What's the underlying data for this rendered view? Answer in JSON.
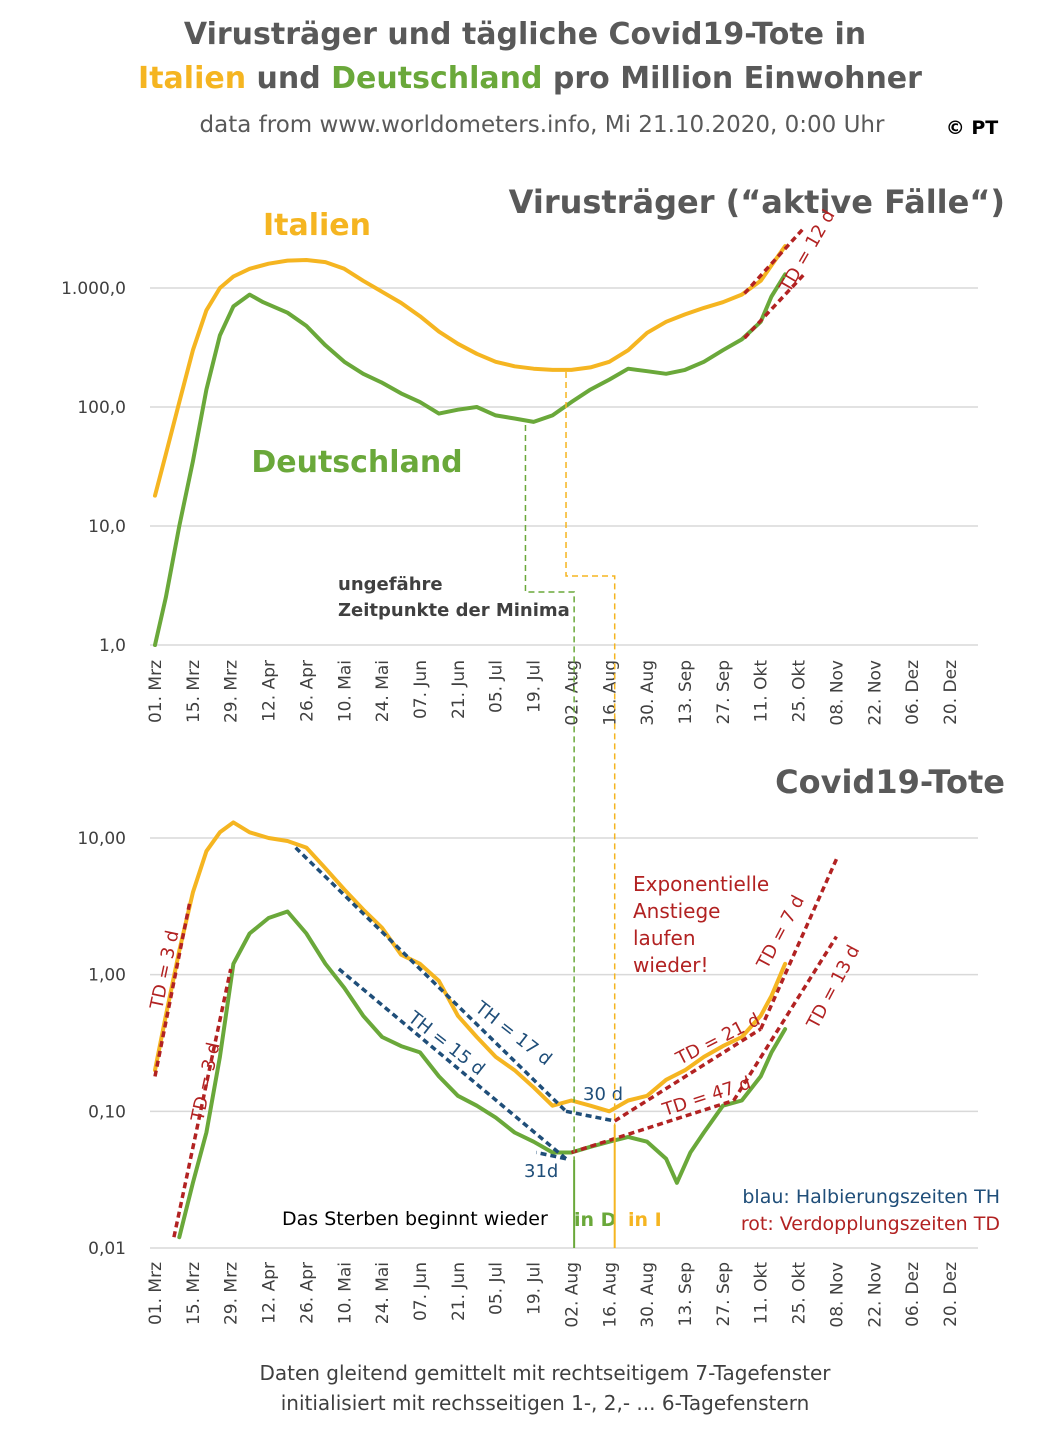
{
  "header": {
    "title_line1": "Virusträger und tägliche Covid19-Tote in",
    "title_line2_italy": "Italien",
    "title_line2_and": " und ",
    "title_line2_germany": "Deutschland",
    "title_line2_rest": " pro Million Einwohner",
    "subtitle": "data from www.worldometers.info, Mi 21.10.2020, 0:00 Uhr",
    "copyright": "© PT"
  },
  "colors": {
    "italy": "#f5b521",
    "germany": "#6aa83a",
    "halving_blue": "#1f4e79",
    "doubling_red": "#b22222",
    "title_gray": "#595959"
  },
  "footer": {
    "line1": "Daten gleitend gemittelt mit rechtseitigem 7-Tagefenster",
    "line2": "initialisiert mit rechsseitigen 1-, 2,- ... 6-Tagefenstern"
  },
  "chart_data": [
    {
      "type": "line",
      "title": "Virusträger (“aktive Fälle“)",
      "y_scale": "log",
      "ylim": [
        1,
        3000
      ],
      "y_ticks": [
        "1.000,0",
        "100,0",
        "10,0",
        "1,0"
      ],
      "y_tick_values": [
        1000,
        100,
        10,
        1
      ],
      "x_range": [
        "2020-03-01",
        "2020-12-31"
      ],
      "x_ticks": [
        "01. Mrz",
        "15. Mrz",
        "29. Mrz",
        "12. Apr",
        "26. Apr",
        "10. Mai",
        "24. Mai",
        "07. Jun",
        "21. Jun",
        "05. Jul",
        "19. Jul",
        "02. Aug",
        "16. Aug",
        "30. Aug",
        "13. Sep",
        "27. Sep",
        "11. Okt",
        "25. Okt",
        "08. Nov",
        "22. Nov",
        "06. Dez",
        "20. Dez"
      ],
      "x_tick_dates": [
        "2020-03-01",
        "2020-03-15",
        "2020-03-29",
        "2020-04-12",
        "2020-04-26",
        "2020-05-10",
        "2020-05-24",
        "2020-06-07",
        "2020-06-21",
        "2020-07-05",
        "2020-07-19",
        "2020-08-02",
        "2020-08-16",
        "2020-08-30",
        "2020-09-13",
        "2020-09-27",
        "2020-10-11",
        "2020-10-25",
        "2020-11-08",
        "2020-11-22",
        "2020-12-06",
        "2020-12-20"
      ],
      "grid": true,
      "series": [
        {
          "name": "Italien",
          "color": "#f5b521",
          "points": [
            [
              "2020-03-01",
              18
            ],
            [
              "2020-03-05",
              40
            ],
            [
              "2020-03-10",
              110
            ],
            [
              "2020-03-15",
              300
            ],
            [
              "2020-03-20",
              650
            ],
            [
              "2020-03-25",
              1000
            ],
            [
              "2020-03-30",
              1250
            ],
            [
              "2020-04-05",
              1450
            ],
            [
              "2020-04-12",
              1600
            ],
            [
              "2020-04-19",
              1700
            ],
            [
              "2020-04-26",
              1720
            ],
            [
              "2020-05-03",
              1650
            ],
            [
              "2020-05-10",
              1450
            ],
            [
              "2020-05-17",
              1150
            ],
            [
              "2020-05-24",
              930
            ],
            [
              "2020-05-31",
              750
            ],
            [
              "2020-06-07",
              580
            ],
            [
              "2020-06-14",
              430
            ],
            [
              "2020-06-21",
              340
            ],
            [
              "2020-06-28",
              280
            ],
            [
              "2020-07-05",
              240
            ],
            [
              "2020-07-12",
              220
            ],
            [
              "2020-07-19",
              210
            ],
            [
              "2020-07-26",
              205
            ],
            [
              "2020-08-02",
              205
            ],
            [
              "2020-08-09",
              215
            ],
            [
              "2020-08-16",
              240
            ],
            [
              "2020-08-23",
              300
            ],
            [
              "2020-08-30",
              420
            ],
            [
              "2020-09-06",
              520
            ],
            [
              "2020-09-13",
              600
            ],
            [
              "2020-09-20",
              680
            ],
            [
              "2020-09-27",
              760
            ],
            [
              "2020-10-04",
              880
            ],
            [
              "2020-10-11",
              1150
            ],
            [
              "2020-10-15",
              1550
            ],
            [
              "2020-10-20",
              2250
            ]
          ]
        },
        {
          "name": "Deutschland",
          "color": "#6aa83a",
          "points": [
            [
              "2020-03-01",
              1
            ],
            [
              "2020-03-05",
              2.5
            ],
            [
              "2020-03-10",
              10
            ],
            [
              "2020-03-15",
              35
            ],
            [
              "2020-03-20",
              140
            ],
            [
              "2020-03-25",
              400
            ],
            [
              "2020-03-30",
              700
            ],
            [
              "2020-04-05",
              880
            ],
            [
              "2020-04-10",
              760
            ],
            [
              "2020-04-19",
              620
            ],
            [
              "2020-04-26",
              480
            ],
            [
              "2020-05-03",
              330
            ],
            [
              "2020-05-10",
              240
            ],
            [
              "2020-05-17",
              190
            ],
            [
              "2020-05-24",
              160
            ],
            [
              "2020-05-31",
              130
            ],
            [
              "2020-06-07",
              110
            ],
            [
              "2020-06-14",
              88
            ],
            [
              "2020-06-21",
              95
            ],
            [
              "2020-06-28",
              100
            ],
            [
              "2020-07-05",
              85
            ],
            [
              "2020-07-12",
              80
            ],
            [
              "2020-07-19",
              75
            ],
            [
              "2020-07-26",
              85
            ],
            [
              "2020-08-02",
              110
            ],
            [
              "2020-08-09",
              140
            ],
            [
              "2020-08-16",
              170
            ],
            [
              "2020-08-23",
              210
            ],
            [
              "2020-08-30",
              200
            ],
            [
              "2020-09-06",
              190
            ],
            [
              "2020-09-13",
              205
            ],
            [
              "2020-09-20",
              240
            ],
            [
              "2020-09-27",
              300
            ],
            [
              "2020-10-04",
              370
            ],
            [
              "2020-10-11",
              520
            ],
            [
              "2020-10-15",
              850
            ],
            [
              "2020-10-20",
              1300
            ]
          ]
        }
      ],
      "annotations": {
        "label_italy": "Italien",
        "label_germany": "Deutschland",
        "minima_line1": "ungefähre",
        "minima_line2": "Zeitpunkte der Minima",
        "td_label": "TD = 12 d",
        "minimum_germany_date": "2020-07-16",
        "minimum_italy_date": "2020-07-31"
      }
    },
    {
      "type": "line",
      "title": "Covid19-Tote",
      "y_scale": "log",
      "ylim": [
        0.01,
        15
      ],
      "y_ticks": [
        "10,00",
        "1,00",
        "0,10",
        "0,01"
      ],
      "y_tick_values": [
        10,
        1,
        0.1,
        0.01
      ],
      "x_range": [
        "2020-03-01",
        "2020-12-31"
      ],
      "x_ticks": [
        "01. Mrz",
        "15. Mrz",
        "29. Mrz",
        "12. Apr",
        "26. Apr",
        "10. Mai",
        "24. Mai",
        "07. Jun",
        "21. Jun",
        "05. Jul",
        "19. Jul",
        "02. Aug",
        "16. Aug",
        "30. Aug",
        "13. Sep",
        "27. Sep",
        "11. Okt",
        "25. Okt",
        "08. Nov",
        "22. Nov",
        "06. Dez",
        "20. Dez"
      ],
      "x_tick_dates": [
        "2020-03-01",
        "2020-03-15",
        "2020-03-29",
        "2020-04-12",
        "2020-04-26",
        "2020-05-10",
        "2020-05-24",
        "2020-06-07",
        "2020-06-21",
        "2020-07-05",
        "2020-07-19",
        "2020-08-02",
        "2020-08-16",
        "2020-08-30",
        "2020-09-13",
        "2020-09-27",
        "2020-10-11",
        "2020-10-25",
        "2020-11-08",
        "2020-11-22",
        "2020-12-06",
        "2020-12-20"
      ],
      "grid": true,
      "series": [
        {
          "name": "Italien",
          "color": "#f5b521",
          "points": [
            [
              "2020-03-01",
              0.2
            ],
            [
              "2020-03-05",
              0.5
            ],
            [
              "2020-03-10",
              1.5
            ],
            [
              "2020-03-15",
              4
            ],
            [
              "2020-03-20",
              8
            ],
            [
              "2020-03-25",
              11
            ],
            [
              "2020-03-30",
              13
            ],
            [
              "2020-04-05",
              11
            ],
            [
              "2020-04-12",
              10
            ],
            [
              "2020-04-19",
              9.5
            ],
            [
              "2020-04-26",
              8.5
            ],
            [
              "2020-05-03",
              6
            ],
            [
              "2020-05-10",
              4.2
            ],
            [
              "2020-05-17",
              3
            ],
            [
              "2020-05-24",
              2.2
            ],
            [
              "2020-05-31",
              1.4
            ],
            [
              "2020-06-07",
              1.2
            ],
            [
              "2020-06-14",
              0.9
            ],
            [
              "2020-06-21",
              0.5
            ],
            [
              "2020-06-28",
              0.35
            ],
            [
              "2020-07-05",
              0.25
            ],
            [
              "2020-07-12",
              0.2
            ],
            [
              "2020-07-19",
              0.15
            ],
            [
              "2020-07-26",
              0.11
            ],
            [
              "2020-08-02",
              0.12
            ],
            [
              "2020-08-09",
              0.11
            ],
            [
              "2020-08-16",
              0.1
            ],
            [
              "2020-08-23",
              0.12
            ],
            [
              "2020-08-30",
              0.13
            ],
            [
              "2020-09-06",
              0.17
            ],
            [
              "2020-09-13",
              0.2
            ],
            [
              "2020-09-20",
              0.25
            ],
            [
              "2020-09-27",
              0.3
            ],
            [
              "2020-10-04",
              0.35
            ],
            [
              "2020-10-11",
              0.5
            ],
            [
              "2020-10-15",
              0.7
            ],
            [
              "2020-10-20",
              1.2
            ]
          ]
        },
        {
          "name": "Deutschland",
          "color": "#6aa83a",
          "points": [
            [
              "2020-03-10",
              0.012
            ],
            [
              "2020-03-15",
              0.03
            ],
            [
              "2020-03-20",
              0.07
            ],
            [
              "2020-03-25",
              0.25
            ],
            [
              "2020-03-30",
              1.2
            ],
            [
              "2020-04-05",
              2
            ],
            [
              "2020-04-12",
              2.6
            ],
            [
              "2020-04-19",
              2.9
            ],
            [
              "2020-04-26",
              2
            ],
            [
              "2020-05-03",
              1.2
            ],
            [
              "2020-05-10",
              0.8
            ],
            [
              "2020-05-17",
              0.5
            ],
            [
              "2020-05-24",
              0.35
            ],
            [
              "2020-05-31",
              0.3
            ],
            [
              "2020-06-07",
              0.27
            ],
            [
              "2020-06-14",
              0.18
            ],
            [
              "2020-06-21",
              0.13
            ],
            [
              "2020-06-28",
              0.11
            ],
            [
              "2020-07-05",
              0.09
            ],
            [
              "2020-07-12",
              0.07
            ],
            [
              "2020-07-19",
              0.06
            ],
            [
              "2020-07-26",
              0.05
            ],
            [
              "2020-08-02",
              0.05
            ],
            [
              "2020-08-09",
              0.055
            ],
            [
              "2020-08-16",
              0.06
            ],
            [
              "2020-08-23",
              0.065
            ],
            [
              "2020-08-30",
              0.06
            ],
            [
              "2020-09-06",
              0.045
            ],
            [
              "2020-09-10",
              0.03
            ],
            [
              "2020-09-15",
              0.05
            ],
            [
              "2020-09-20",
              0.07
            ],
            [
              "2020-09-27",
              0.11
            ],
            [
              "2020-10-04",
              0.12
            ],
            [
              "2020-10-11",
              0.18
            ],
            [
              "2020-10-15",
              0.27
            ],
            [
              "2020-10-20",
              0.4
            ]
          ]
        }
      ],
      "annotations": {
        "exp_line1": "Exponentielle",
        "exp_line2": "Anstiege",
        "exp_line3": "laufen",
        "exp_line4": "wieder!",
        "td3_a": "TD = 3 d",
        "td3_b": "TD = 3 d",
        "td7": "TD = 7 d",
        "td13": "TD = 13 d",
        "td21": "TD = 21 d",
        "td47": "TD = 47 d",
        "th17": "TH = 17 d",
        "th15": "TH = 15 d",
        "d30": "30 d",
        "d31": "31d",
        "dying_again": "Das  Sterben beginnt wieder",
        "in_d": "in D",
        "in_i": "in I",
        "legend_blue": "blau: Halbierungszeiten TH",
        "legend_red": "rot: Verdopplungszeiten TD",
        "start_germany_date": "2020-08-03",
        "start_italy_date": "2020-08-18"
      }
    }
  ]
}
